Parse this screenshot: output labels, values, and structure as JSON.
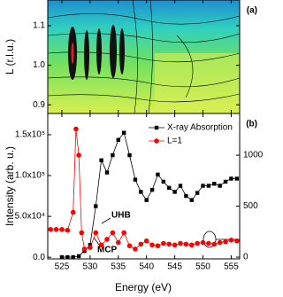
{
  "chart_data": [
    {
      "type": "contour",
      "panel_label": "(a)",
      "ylabel": "L (r.l.u.)",
      "xlim": [
        522.5,
        556.5
      ],
      "xticks": [
        525,
        530,
        535,
        540,
        545,
        550,
        555
      ],
      "ylim": [
        0.878,
        1.165
      ],
      "yticks": [
        0.9,
        {
          "value": 1,
          "label": "1.0"
        },
        1.1
      ]
    },
    {
      "type": "line",
      "panel_label": "(b)",
      "xlabel": "Energy (eV)",
      "ylabel": "Intensity (arb. u.)",
      "xlim": [
        522.5,
        556.5
      ],
      "xticks": [
        525,
        530,
        535,
        540,
        545,
        550,
        555
      ],
      "ylim": [
        -2000,
        176000
      ],
      "yticks": [
        {
          "value": 0,
          "label": "0.0"
        },
        {
          "value": 50000,
          "label": "5.0x10⁴"
        },
        {
          "value": 100000,
          "label": "1.0x10⁵"
        },
        {
          "value": 150000,
          "label": "1.5x10⁵"
        }
      ],
      "y2lim": [
        -17,
        1409
      ],
      "y2ticks": [
        0,
        500,
        1000
      ],
      "annotations": [
        "UHB",
        "MCP"
      ],
      "series": [
        {
          "name": "X-ray Absorption",
          "color": "#000000",
          "axis": "y2",
          "marker": "square",
          "x": [
            525,
            526,
            527,
            528,
            529,
            530,
            531,
            532,
            533,
            534,
            535,
            536,
            537,
            538,
            539,
            540,
            541,
            542,
            543,
            544,
            545,
            546,
            547,
            548,
            549,
            550,
            551,
            552,
            553,
            554,
            555,
            556
          ],
          "values": [
            0,
            0,
            0,
            10,
            60,
            120,
            500,
            950,
            830,
            1000,
            1150,
            1220,
            1000,
            760,
            640,
            560,
            660,
            810,
            740,
            680,
            640,
            700,
            600,
            560,
            630,
            700,
            700,
            720,
            700,
            740,
            770,
            770
          ]
        },
        {
          "name": "L=1",
          "color": "#ff0000",
          "marker": "circle",
          "x": [
            523,
            524,
            525,
            526,
            527,
            527.5,
            528,
            528.5,
            529,
            530,
            531,
            532,
            533,
            534,
            535,
            536,
            537,
            538,
            539,
            540,
            541,
            542,
            543,
            544,
            545,
            546,
            547,
            548,
            549,
            550,
            551,
            552,
            553,
            554,
            555,
            556
          ],
          "values": [
            34000,
            34000,
            34000,
            33000,
            55000,
            157000,
            125000,
            30000,
            10000,
            12000,
            30000,
            15000,
            22000,
            30000,
            18000,
            30000,
            14000,
            10000,
            16000,
            20000,
            15000,
            14000,
            17000,
            16000,
            15000,
            17000,
            16000,
            15000,
            17000,
            18000,
            17000,
            16000,
            18000,
            19000,
            21000,
            20000
          ]
        }
      ]
    }
  ]
}
